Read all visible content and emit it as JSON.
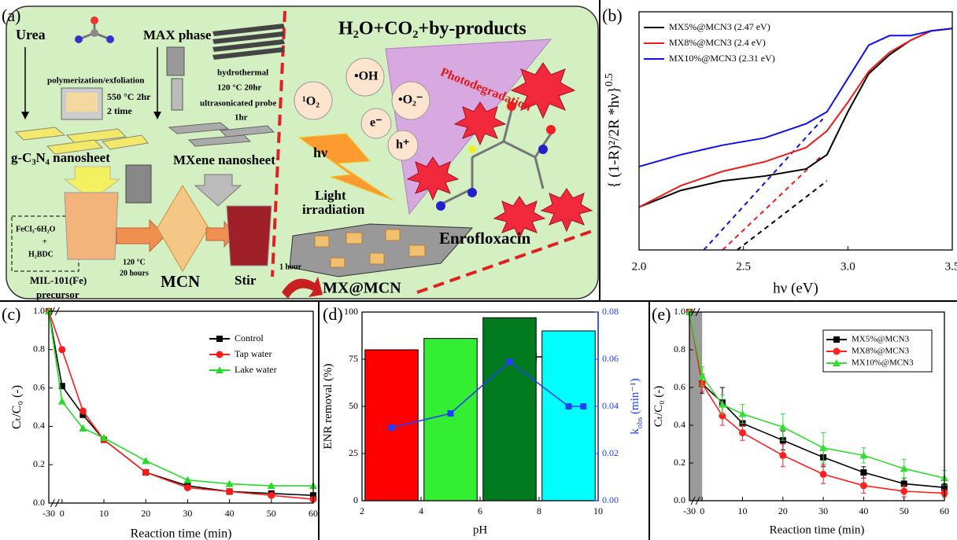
{
  "panel_a": {
    "label": "(a)",
    "urea": "Urea",
    "polymerization": "polymerization/exfoliation",
    "oven_temp": "550 °C 2hr",
    "oven_times": "2 time",
    "gcn": "g-C₃N₄ nanosheet",
    "max_phase": "MAX phase",
    "hydrothermal": "hydrothermal",
    "hydro_temp": "120 °C 20hr",
    "ultrasonic": "ultrasonicated probe",
    "ultrasonic_time": "1hr",
    "mxene": "MXene nanosheet",
    "fecl": "FeCl₃·6H₂O",
    "plus": "+",
    "h2bdc": "H₂BDC",
    "mil": "MIL-101(Fe)",
    "precursor": "precursor",
    "mcn_temp": "120 °C",
    "mcn_time": "20 hours",
    "mcn": "MCN",
    "stir": "Stir",
    "one_hour": "1 hour",
    "mx_mcn": "MX@MCN",
    "products": "H₂O+CO₂+by-products",
    "photodegradation": "Photodegradation",
    "oh": "•OH",
    "singlet": "¹O₂",
    "superoxide": "•O₂⁻",
    "electron": "e⁻",
    "hole": "h⁺",
    "hv": "hν",
    "light": "Light",
    "irradiation": "irradiation",
    "enrofloxacin": "Enrofloxacin"
  },
  "chart_data": [
    {
      "type": "line",
      "label": "(b)",
      "xlabel": "hν (eV)",
      "ylabel": "{ (1-R)²/2R *hν}",
      "ylabel_sup": "0.5",
      "x": [
        2.0,
        2.2,
        2.4,
        2.6,
        2.8,
        2.9,
        3.0,
        3.1,
        3.2,
        3.3,
        3.4,
        3.5
      ],
      "xlim": [
        2.0,
        3.5
      ],
      "xticks": [
        {
          "value": 2,
          "label": "2.0"
        },
        2.5,
        {
          "value": 3,
          "label": "3.0"
        },
        3.5
      ],
      "ylim": [
        0,
        1
      ],
      "legend": "upper-left",
      "series": [
        {
          "name": "MX5%@MCN3 (2.47 eV)",
          "color": "#000000",
          "values": [
            0.18,
            0.25,
            0.29,
            0.31,
            0.34,
            0.4,
            0.58,
            0.74,
            0.82,
            0.88,
            0.92,
            0.93
          ]
        },
        {
          "name": "MX8%@MCN3 (2.4 eV)",
          "color": "#ee1c1c",
          "values": [
            0.18,
            0.27,
            0.33,
            0.37,
            0.43,
            0.5,
            0.62,
            0.75,
            0.83,
            0.88,
            0.92,
            0.93
          ]
        },
        {
          "name": "MX10%@MCN3 (2.31 eV)",
          "color": "#1010ee",
          "values": [
            0.35,
            0.4,
            0.44,
            0.47,
            0.53,
            0.58,
            0.72,
            0.86,
            0.9,
            0.9,
            0.92,
            0.93
          ]
        }
      ],
      "guides": [
        {
          "color": "#000000",
          "x": [
            2.47,
            2.9
          ],
          "values": [
            0,
            0.29
          ]
        },
        {
          "color": "#ee1c1c",
          "x": [
            2.4,
            2.88
          ],
          "values": [
            0,
            0.4
          ]
        },
        {
          "color": "#1010ee",
          "x": [
            2.31,
            2.88
          ],
          "values": [
            0,
            0.55
          ]
        }
      ]
    },
    {
      "type": "line",
      "label": "(c)",
      "xlabel": "Reaction time (min)",
      "ylabel": "Cₜ/C₀ (-)",
      "x": [
        -30,
        0,
        5,
        10,
        20,
        30,
        40,
        50,
        60
      ],
      "xlim": [
        -30,
        60
      ],
      "axis_break": [
        -30,
        0
      ],
      "xticks": [
        -30,
        0,
        10,
        20,
        30,
        40,
        50,
        60
      ],
      "ylim": [
        0,
        1
      ],
      "yticks": [
        {
          "value": 0,
          "label": "0.0"
        },
        0.2,
        0.4,
        0.6,
        0.8,
        {
          "value": 1,
          "label": "1.0"
        }
      ],
      "legend": "upper-right",
      "series": [
        {
          "name": "Control",
          "color": "#000000",
          "marker": "square",
          "values": [
            1.0,
            0.61,
            0.46,
            0.33,
            0.16,
            0.09,
            0.06,
            0.05,
            0.04
          ]
        },
        {
          "name": "Tap water",
          "color": "#ff1a1a",
          "marker": "circle",
          "values": [
            1.0,
            0.8,
            0.48,
            0.33,
            0.16,
            0.08,
            0.06,
            0.04,
            0.02
          ]
        },
        {
          "name": "Lake water",
          "color": "#22dd22",
          "marker": "triangle",
          "values": [
            1.0,
            0.53,
            0.39,
            0.34,
            0.22,
            0.12,
            0.1,
            0.09,
            0.09
          ]
        }
      ]
    },
    {
      "type": "combo",
      "label": "(d)",
      "xlabel": "pH",
      "ylabel": "ENR removal (%)",
      "y2label": "k",
      "y2label_sub": "obs",
      "y2label_rest": " (min⁻¹)",
      "xlim": [
        2,
        10
      ],
      "xticks": [
        2,
        4,
        6,
        8,
        10
      ],
      "ylim": [
        0,
        100
      ],
      "yticks": [
        0,
        25,
        50,
        75,
        100
      ],
      "y2lim": [
        0,
        0.08
      ],
      "y2ticks": [
        {
          "value": 0,
          "label": "0.00"
        },
        0.02,
        0.04,
        0.06,
        0.08
      ],
      "bars": {
        "x": [
          3,
          5,
          7,
          9
        ],
        "values": [
          80,
          86,
          97,
          90
        ],
        "colors": [
          "#ff0000",
          "#33ee33",
          "#007a1f",
          "#00ffff"
        ]
      },
      "series": [
        {
          "axis": "y2",
          "color": "#1f3fff",
          "marker": "square",
          "x": [
            3,
            5,
            7,
            9,
            9.5
          ],
          "values": [
            0.031,
            0.037,
            0.059,
            0.04,
            0.04
          ]
        }
      ]
    },
    {
      "type": "line",
      "label": "(e)",
      "xlabel": "Reaction time (min)",
      "ylabel": "Cₜ/C₀ (-)",
      "x": [
        -30,
        0,
        5,
        10,
        20,
        30,
        40,
        50,
        60
      ],
      "xlim": [
        -30,
        60
      ],
      "axis_break": [
        -30,
        0
      ],
      "shaded_range": [
        -30,
        0
      ],
      "xticks": [
        -30,
        0,
        10,
        20,
        30,
        40,
        50,
        60
      ],
      "ylim": [
        0,
        1
      ],
      "yticks": [
        {
          "value": 0,
          "label": "0.0"
        },
        0.2,
        0.4,
        0.6,
        0.8,
        {
          "value": 1,
          "label": "1.0"
        }
      ],
      "legend": "upper-right",
      "legend_frame": true,
      "series": [
        {
          "name": "MX5%@MCN3",
          "color": "#000000",
          "marker": "square",
          "values": [
            1.0,
            0.62,
            0.52,
            0.41,
            0.32,
            0.23,
            0.15,
            0.09,
            0.07
          ],
          "errors": [
            0,
            0.05,
            0.08,
            0.04,
            0.05,
            0.05,
            0.03,
            0.03,
            0.02
          ]
        },
        {
          "name": "MX8%@MCN3",
          "color": "#ff2020",
          "marker": "circle",
          "values": [
            1.0,
            0.62,
            0.45,
            0.36,
            0.24,
            0.14,
            0.08,
            0.05,
            0.04
          ],
          "errors": [
            0,
            0.04,
            0.05,
            0.04,
            0.06,
            0.05,
            0.04,
            0.03,
            0.02
          ]
        },
        {
          "name": "MX10%@MCN3",
          "color": "#33dd33",
          "marker": "triangle",
          "values": [
            1.0,
            0.66,
            0.51,
            0.46,
            0.39,
            0.28,
            0.24,
            0.17,
            0.12
          ],
          "errors": [
            0,
            0.05,
            0.05,
            0.05,
            0.07,
            0.08,
            0.04,
            0.05,
            0.04
          ]
        }
      ]
    }
  ]
}
